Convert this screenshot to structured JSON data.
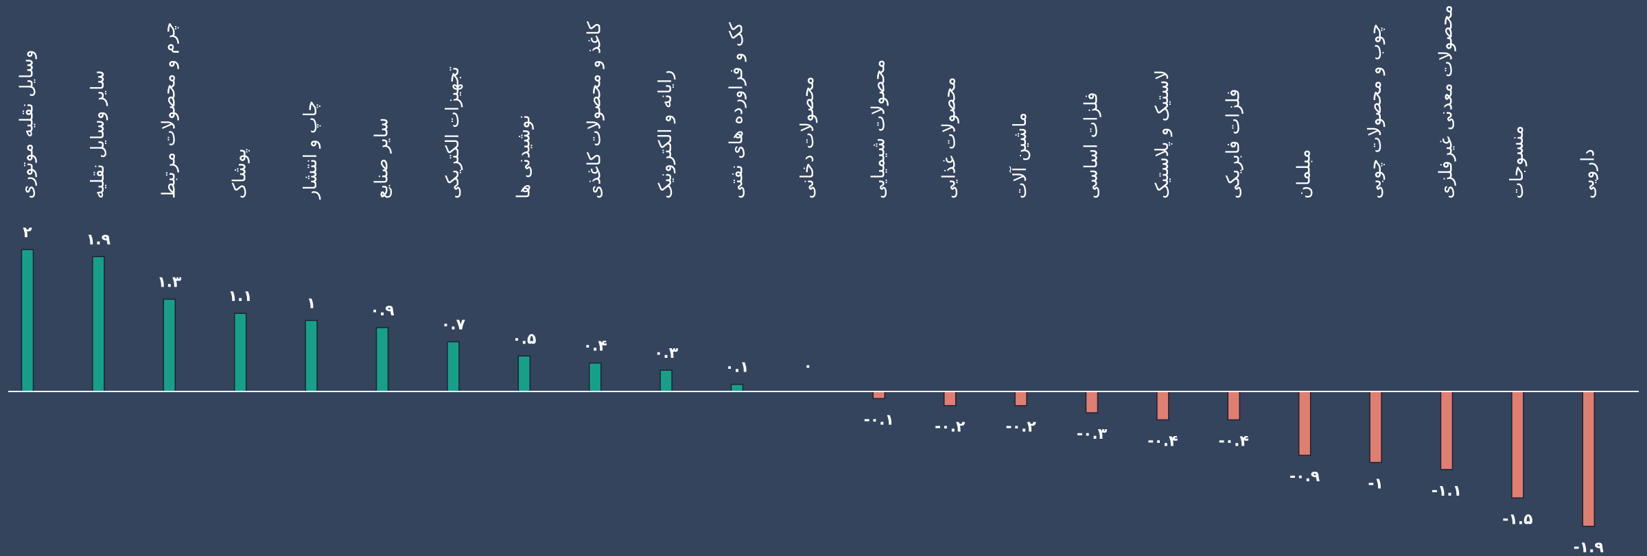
{
  "colors": {
    "background": "#34445d",
    "positive": "#16a08a",
    "negative": "#e07e72",
    "baseline": "#ffffff",
    "bar_outline": "#1b2230",
    "text": "#ffffff"
  },
  "chart_data": {
    "type": "bar",
    "title": "",
    "xlabel": "",
    "ylabel": "",
    "ylim": [
      -1.9,
      2
    ],
    "grid": false,
    "legend": "none",
    "categories": [
      "وسایل نقلیه موتوری",
      "سایر وسایل نقلیه",
      "چرم و محصولات مرتبط",
      "پوشاک",
      "چاپ و انتشار",
      "سایر صنایع",
      "تجهیزات الکتریکی",
      "نوشیدنی ها",
      "کاغذ و محصولات کاغذی",
      "رایانه و الکترونیک",
      "کک و فراورده های نفتی",
      "محصولات دخانی",
      "محصولات شیمیایی",
      "محصولات غذایی",
      "ماشین آلات",
      "فلزات اساسی",
      "لاستیک و پلاستیک",
      "فلزات فابریکی",
      "مبلمان",
      "چوب و محصولات چوبی",
      "محصولات معدنی غیرفلزی",
      "منسوجات",
      "دارویی"
    ],
    "values": [
      2,
      1.9,
      1.3,
      1.1,
      1,
      0.9,
      0.7,
      0.5,
      0.4,
      0.3,
      0.1,
      0,
      -0.1,
      -0.2,
      -0.2,
      -0.3,
      -0.4,
      -0.4,
      -0.9,
      -1,
      -1.1,
      -1.5,
      -1.9
    ],
    "value_labels": [
      "۲",
      "۱.۹",
      "۱.۳",
      "۱.۱",
      "۱",
      "۰.۹",
      "۰.۷",
      "۰.۵",
      "۰.۴",
      "۰.۳",
      "۰.۱",
      "۰",
      "-۰.۱",
      "-۰.۲",
      "-۰.۲",
      "-۰.۳",
      "-۰.۴",
      "-۰.۴",
      "-۰.۹",
      "-۱",
      "-۱.۱",
      "-۱.۵",
      "-۱.۹"
    ]
  }
}
